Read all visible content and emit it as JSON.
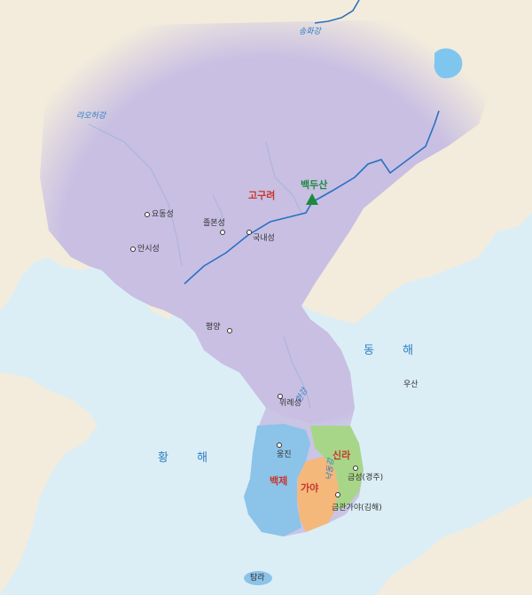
{
  "colors": {
    "sea": "#dbeef6",
    "land": "#f3ecdc",
    "goguryeo": "#c8bfe3",
    "baekje": "#8cc3e8",
    "gaya": "#f4b87b",
    "silla": "#a7d689",
    "river": "#2a70c2",
    "kingdom_label": "#c8352b",
    "mountain": "#1a8a3e"
  },
  "rivers": {
    "songhwa": "송화강",
    "liao": "랴오허강",
    "han": "한강",
    "nakdong": "낙동강"
  },
  "seas": {
    "east": "동 해",
    "yellow": "황 해"
  },
  "kingdoms": {
    "goguryeo": "고구려",
    "baekje": "백제",
    "gaya": "가야",
    "silla": "신라"
  },
  "mountain": {
    "baekdu": "백두산"
  },
  "cities": {
    "yodong": "요동성",
    "ansi": "안시성",
    "jolbon": "졸본성",
    "gungnae": "국내성",
    "pyongyang": "평양",
    "wirye": "위례성",
    "ungjin": "웅진",
    "geumseong": "금성(경주)",
    "geumgwan": "금관가야(김해)",
    "usan": "우산",
    "tamna": "탐라"
  }
}
